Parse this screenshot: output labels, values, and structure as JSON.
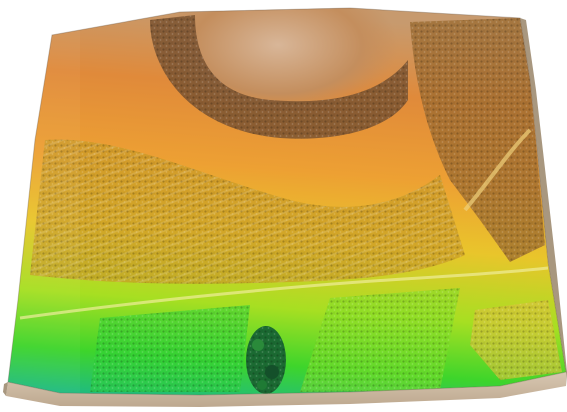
{
  "scene": {
    "subject": "terrain-3d-elevation-model",
    "colors": {
      "background": "#ffffff",
      "base_side": "#c9b8a3",
      "base_side_dark": "#a8977f",
      "elevation_high": "#c98a4a",
      "elevation_upper": "#e9942f",
      "elevation_mid": "#f2c22a",
      "elevation_lowmid": "#b9e01f",
      "elevation_low": "#3fd62a",
      "elevation_lowest": "#14b2a6",
      "crop_texture_dark": "#6b4a2a"
    },
    "icons": [
      "terrain-surface",
      "terraced-field-rows",
      "tree-clump",
      "road-track"
    ]
  }
}
